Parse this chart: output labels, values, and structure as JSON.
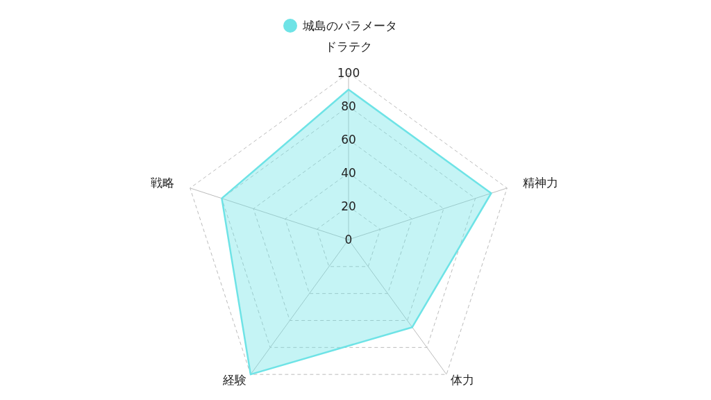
{
  "chart_data": {
    "type": "radar",
    "categories": [
      "ドラテク",
      "精神力",
      "体力",
      "経験",
      "戦略"
    ],
    "series": [
      {
        "name": "城島のパラメータ",
        "color": "#6ee3e6",
        "values": [
          90,
          90,
          65,
          100,
          80
        ]
      }
    ],
    "ylim": [
      0,
      100
    ],
    "yticks": [
      0,
      20,
      40,
      60,
      80,
      100
    ],
    "grid": true,
    "legend": "top",
    "marker": "none",
    "line_style": "solid"
  }
}
